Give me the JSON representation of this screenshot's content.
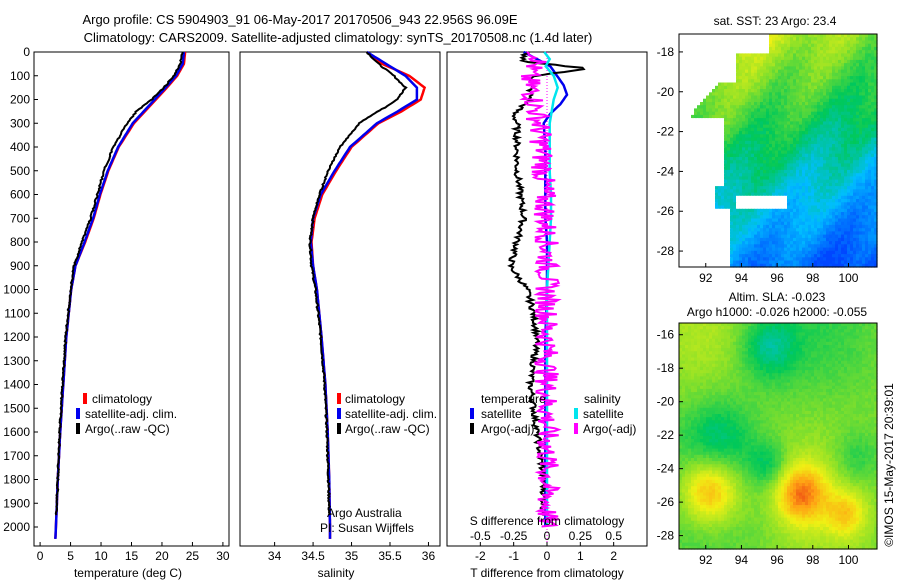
{
  "header": {
    "line1": "Argo profile: CS 5904903_91 06-May-2017 20170506_943 22.956S 96.09E",
    "line2": "Climatology: CARS2009. Satellite-adjusted climatology: synTS_20170508.nc (1.4d later)"
  },
  "colors": {
    "climatology": "#ff0000",
    "satellite": "#0000ee",
    "argo": "#000000",
    "salinity_satellite": "#00e5ee",
    "salinity_argo": "#ff00ff"
  },
  "chart_data": [
    {
      "type": "line",
      "id": "temperature",
      "xlabel": "temperature (deg C)",
      "ylabel": "",
      "xlim": [
        -1,
        31
      ],
      "ylim": [
        2080,
        0
      ],
      "xticks": [
        0,
        5,
        10,
        15,
        20,
        25,
        30
      ],
      "yticks": [
        0,
        100,
        200,
        300,
        400,
        500,
        600,
        700,
        800,
        900,
        1000,
        1100,
        1200,
        1300,
        1400,
        1500,
        1600,
        1700,
        1800,
        1900,
        2000
      ],
      "legend": [
        "climatology",
        "satellite-adj. clim.",
        "Argo(..raw -QC)"
      ],
      "series": [
        {
          "name": "climatology",
          "depth": [
            0,
            50,
            100,
            150,
            200,
            250,
            300,
            400,
            500,
            600,
            700,
            800,
            900,
            1000,
            1200,
            1400,
            1600,
            1800,
            2000,
            2050
          ],
          "values": [
            23.8,
            23.6,
            22.5,
            20.8,
            19.0,
            17.2,
            15.4,
            12.9,
            11.2,
            9.9,
            8.8,
            7.4,
            5.8,
            5.1,
            4.3,
            3.8,
            3.3,
            2.9,
            2.6,
            2.5
          ]
        },
        {
          "name": "satellite-adj. clim.",
          "depth": [
            0,
            50,
            100,
            150,
            200,
            250,
            300,
            400,
            500,
            600,
            700,
            800,
            900,
            1000,
            1200,
            1400,
            1600,
            1800,
            2000,
            2050
          ],
          "values": [
            23.6,
            23.4,
            22.3,
            20.6,
            18.8,
            17.0,
            15.2,
            12.8,
            11.1,
            9.8,
            8.7,
            7.3,
            5.8,
            5.1,
            4.3,
            3.8,
            3.3,
            2.9,
            2.6,
            2.5
          ]
        },
        {
          "name": "Argo(..raw -QC)",
          "depth": [
            0,
            50,
            100,
            150,
            200,
            250,
            300,
            400,
            500,
            600,
            700,
            800,
            900,
            1000,
            1200,
            1400,
            1600,
            1800,
            1950
          ],
          "values": [
            23.4,
            23.0,
            22.0,
            20.3,
            18.3,
            15.8,
            14.3,
            12.0,
            10.5,
            9.4,
            8.3,
            6.9,
            5.6,
            5.0,
            4.2,
            3.7,
            3.2,
            2.9,
            2.7
          ]
        }
      ]
    },
    {
      "type": "line",
      "id": "salinity",
      "xlabel": "salinity",
      "xlim": [
        33.55,
        36.15
      ],
      "ylim": [
        2080,
        0
      ],
      "xticks": [
        34,
        34.5,
        35,
        35.5,
        36
      ],
      "legend": [
        "climatology",
        "satellite-adj. clim.",
        "Argo(..raw -QC)"
      ],
      "annotation": [
        "Argo Australia",
        "PI: Susan Wijffels"
      ],
      "series": [
        {
          "name": "climatology",
          "depth": [
            0,
            50,
            100,
            150,
            200,
            250,
            300,
            400,
            500,
            600,
            700,
            800,
            900,
            1000,
            1200,
            1400,
            1600,
            1800,
            2000,
            2050
          ],
          "values": [
            35.2,
            35.4,
            35.75,
            35.95,
            35.9,
            35.65,
            35.35,
            35.0,
            34.8,
            34.62,
            34.52,
            34.48,
            34.5,
            34.55,
            34.61,
            34.66,
            34.69,
            34.71,
            34.72,
            34.72
          ]
        },
        {
          "name": "satellite-adj. clim.",
          "depth": [
            0,
            50,
            100,
            150,
            200,
            250,
            300,
            400,
            500,
            600,
            700,
            800,
            900,
            1000,
            1200,
            1400,
            1600,
            1800,
            2000,
            2050
          ],
          "values": [
            35.2,
            35.45,
            35.7,
            35.85,
            35.85,
            35.6,
            35.33,
            34.98,
            34.78,
            34.6,
            34.5,
            34.47,
            34.5,
            34.55,
            34.61,
            34.66,
            34.69,
            34.71,
            34.72,
            34.72
          ]
        },
        {
          "name": "Argo(..raw -QC)",
          "depth": [
            0,
            50,
            100,
            150,
            200,
            250,
            300,
            400,
            500,
            600,
            700,
            800,
            900,
            1000,
            1200,
            1400,
            1600,
            1800,
            1950
          ],
          "values": [
            35.2,
            35.35,
            35.55,
            35.7,
            35.6,
            35.35,
            35.1,
            34.85,
            34.7,
            34.58,
            34.5,
            34.46,
            34.48,
            34.53,
            34.6,
            34.65,
            34.68,
            34.7,
            34.71
          ]
        }
      ]
    },
    {
      "type": "line",
      "id": "differences",
      "xlabel": "T difference from climatology",
      "xlabel_top": "S difference from climatology",
      "xlim": [
        -3,
        3
      ],
      "ylim": [
        2080,
        0
      ],
      "xticks": [
        -2,
        -1,
        0,
        1,
        2
      ],
      "xticks_top": [
        -0.5,
        -0.25,
        0,
        0.25,
        0.5
      ],
      "legend_temperature": {
        "title": "temperature",
        "items": [
          "satellite",
          "Argo(-adj)"
        ]
      },
      "legend_salinity": {
        "title": "salinity",
        "items": [
          "satellite",
          "Argo(-adj)"
        ]
      },
      "series": [
        {
          "name": "temperature satellite",
          "depth": [
            0,
            30,
            60,
            100,
            140,
            180,
            220,
            260,
            300,
            400,
            500,
            600,
            700,
            800,
            900,
            1000,
            1200,
            1500,
            2000
          ],
          "values": [
            -0.7,
            -0.3,
            0.1,
            0.3,
            0.5,
            0.6,
            0.4,
            0.1,
            -0.1,
            -0.05,
            -0.05,
            -0.05,
            -0.05,
            0,
            0,
            0,
            -0.05,
            -0.05,
            -0.05
          ]
        },
        {
          "name": "temperature Argo(-adj)",
          "depth": [
            0,
            40,
            70,
            100,
            150,
            200,
            260,
            300,
            400,
            500,
            600,
            700,
            800,
            900,
            1000,
            1100,
            1200,
            1300,
            1400,
            1600,
            1800,
            1950
          ],
          "values": [
            -0.6,
            -0.8,
            1.3,
            -0.4,
            -0.5,
            -0.5,
            -1.0,
            -0.9,
            -0.9,
            -0.9,
            -0.8,
            -0.7,
            -0.9,
            -1.1,
            -0.6,
            -0.4,
            -0.3,
            -0.4,
            -0.5,
            -0.3,
            -0.1,
            -0.1
          ]
        },
        {
          "name": "salinity satellite",
          "depth": [
            0,
            30,
            60,
            100,
            150,
            200,
            300,
            400,
            500,
            600,
            700,
            800,
            900,
            1000,
            1200,
            1500,
            2000
          ],
          "values": [
            -0.02,
            0.02,
            -0.01,
            0.05,
            0.08,
            0.05,
            0.02,
            0.02,
            0.02,
            0.03,
            0.03,
            0.02,
            0.01,
            0.0,
            0.0,
            0.0,
            0.0
          ]
        },
        {
          "name": "salinity Argo(-adj)",
          "depth": [
            0,
            30,
            70,
            100,
            150,
            200,
            300,
            400,
            500,
            600,
            700,
            800,
            850,
            900,
            1000,
            1200,
            1500,
            2000
          ],
          "values": [
            -0.08,
            -0.05,
            -0.12,
            -0.15,
            -0.12,
            -0.1,
            -0.06,
            -0.04,
            -0.03,
            -0.02,
            -0.01,
            0.0,
            0.0,
            0.0,
            0.0,
            0.0,
            0.0,
            0.0
          ]
        }
      ]
    },
    {
      "type": "heatmap",
      "id": "sst_map",
      "title": "sat. SST: 23 Argo: 23.4",
      "xlim": [
        90.5,
        101.6
      ],
      "ylim": [
        -28.8,
        -17.1
      ],
      "xticks": [
        92,
        94,
        96,
        98,
        100
      ],
      "yticks": [
        -18,
        -20,
        -22,
        -24,
        -26,
        -28
      ],
      "grid": false
    },
    {
      "type": "heatmap",
      "id": "sla_map",
      "title_line1": "Altim. SLA: -0.023",
      "title_line2": "Argo h1000: -0.026 h2000: -0.055",
      "xlim": [
        90.5,
        101.6
      ],
      "ylim": [
        -28.8,
        -15.3
      ],
      "xticks": [
        92,
        94,
        96,
        98,
        100
      ],
      "yticks": [
        -16,
        -18,
        -20,
        -22,
        -24,
        -26,
        -28
      ],
      "grid": false
    }
  ],
  "footer": {
    "stamp": "©IMOS 15-May-2017 20:39:01"
  }
}
